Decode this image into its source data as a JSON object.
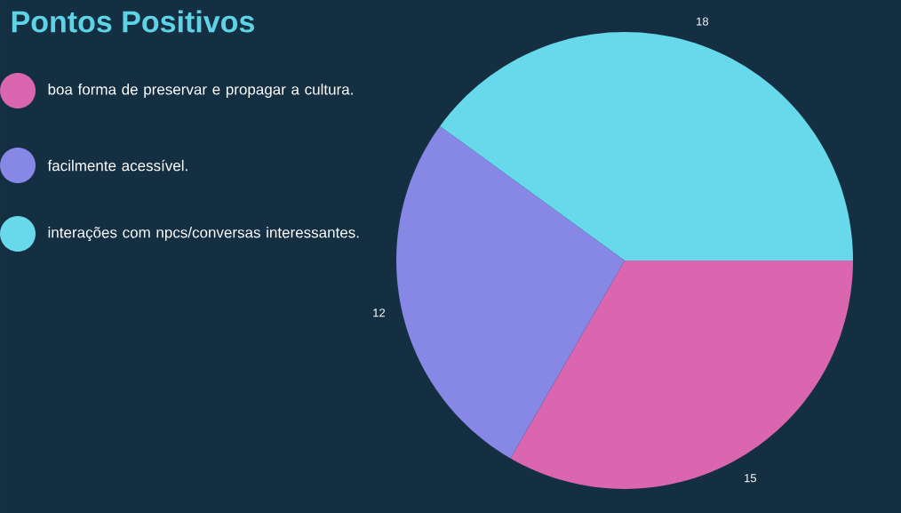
{
  "chart_data": {
    "type": "pie",
    "title": "Pontos Positivos",
    "categories": [
      "boa forma de preservar e propagar a cultura.",
      "facilmente acessível.",
      "interações com npcs/conversas interessantes."
    ],
    "values": [
      15,
      12,
      18
    ],
    "colors": [
      "#d966ae",
      "#8787e6",
      "#68d9eb"
    ],
    "data_labels": true,
    "legend": "left"
  }
}
